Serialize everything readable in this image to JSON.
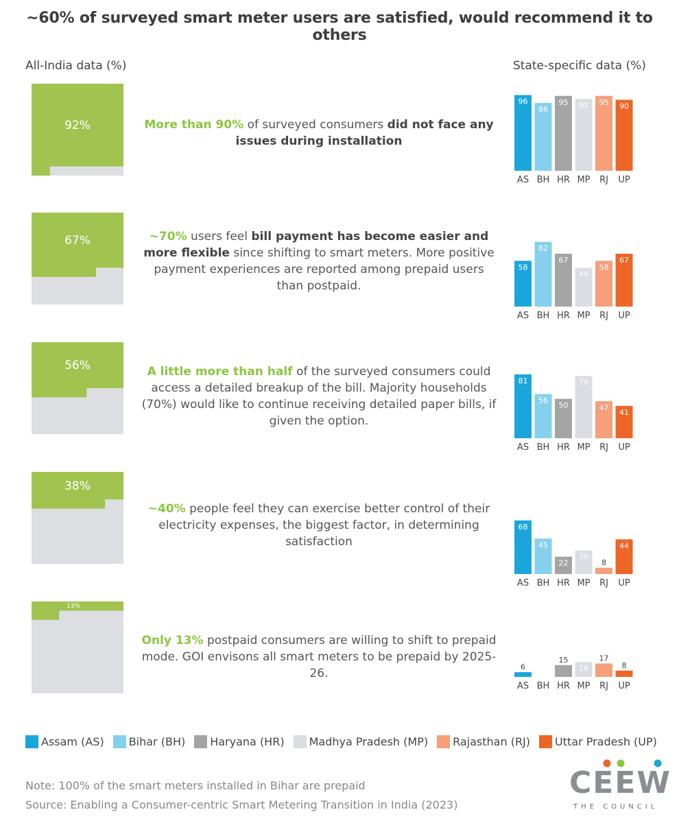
{
  "title": "~60% of surveyed smart meter users are satisfied, would recommend it to others",
  "headers": {
    "all_india": "All-India data (%)",
    "state": "State-specific data (%)"
  },
  "colors": {
    "filled": "#a1c350",
    "empty": "#dddee2",
    "AS": "#1ba6db",
    "BH": "#85d0ef",
    "HR": "#a4a4a4",
    "MP": "#dcdde2",
    "RJ": "#f5a07b",
    "UP": "#ee6627",
    "highlight": "#8cc63f"
  },
  "rows": [
    {
      "pct_label": "92%",
      "statement": [
        {
          "t": "More than 90%",
          "s": "hl"
        },
        {
          "t": " of surveyed consumers ",
          "s": ""
        },
        {
          "t": "did not face any issues during installation",
          "s": "bd"
        }
      ]
    },
    {
      "pct_label": "67%",
      "statement": [
        {
          "t": "~70%",
          "s": "hl"
        },
        {
          "t": " users feel ",
          "s": ""
        },
        {
          "t": "bill payment has become easier and more flexible",
          "s": "bd"
        },
        {
          "t": " since shifting to smart meters. More positive payment experiences are reported among prepaid users than postpaid.",
          "s": ""
        }
      ]
    },
    {
      "pct_label": "56%",
      "statement": [
        {
          "t": "A little more than half",
          "s": "hl"
        },
        {
          "t": " of the surveyed consumers could access a detailed breakup of the bill. Majority households (70%) would like to continue receiving detailed paper bills, if given the option.",
          "s": ""
        }
      ]
    },
    {
      "pct_label": "38%",
      "statement": [
        {
          "t": "~40%",
          "s": "hl"
        },
        {
          "t": " people feel they can exercise better control of their electricity expenses, the biggest factor, in determining satisfaction",
          "s": ""
        }
      ]
    },
    {
      "pct_label": "13%",
      "statement": [
        {
          "t": "Only 13%",
          "s": "hl"
        },
        {
          "t": " postpaid consumers are willing to shift to prepaid mode. GOI envisons all smart meters to be prepaid by 2025-26.",
          "s": ""
        }
      ]
    }
  ],
  "chart_data": {
    "type": "bar",
    "title": "~60% of surveyed smart meter users are satisfied, would recommend it to others",
    "categories": [
      "AS",
      "BH",
      "HR",
      "MP",
      "RJ",
      "UP"
    ],
    "ylim": [
      0,
      100
    ],
    "all_india": [
      92,
      67,
      56,
      38,
      13
    ],
    "panels": [
      {
        "values": [
          96,
          86,
          95,
          91,
          95,
          90
        ]
      },
      {
        "values": [
          58,
          82,
          67,
          49,
          58,
          67
        ]
      },
      {
        "values": [
          81,
          56,
          50,
          79,
          47,
          41
        ]
      },
      {
        "values": [
          68,
          45,
          22,
          30,
          8,
          44
        ]
      },
      {
        "values": [
          6,
          null,
          15,
          19,
          17,
          8
        ]
      }
    ]
  },
  "legend": [
    {
      "key": "AS",
      "label": "Assam (AS)"
    },
    {
      "key": "BH",
      "label": "Bihar (BH)"
    },
    {
      "key": "HR",
      "label": "Haryana (HR)"
    },
    {
      "key": "MP",
      "label": "Madhya Pradesh (MP)"
    },
    {
      "key": "RJ",
      "label": "Rajasthan (RJ)"
    },
    {
      "key": "UP",
      "label": "Uttar Pradesh (UP)"
    }
  ],
  "note": "Note: 100% of the smart meters installed in Bihar are prepaid",
  "source": "Source: Enabling a Consumer-centric Smart Metering Transition in India (2023)",
  "logo": {
    "text": "CEEW",
    "sub": "THE COUNCIL",
    "dot_colors": [
      "#ee6627",
      "#8cc63f",
      "#1ba6db"
    ]
  }
}
